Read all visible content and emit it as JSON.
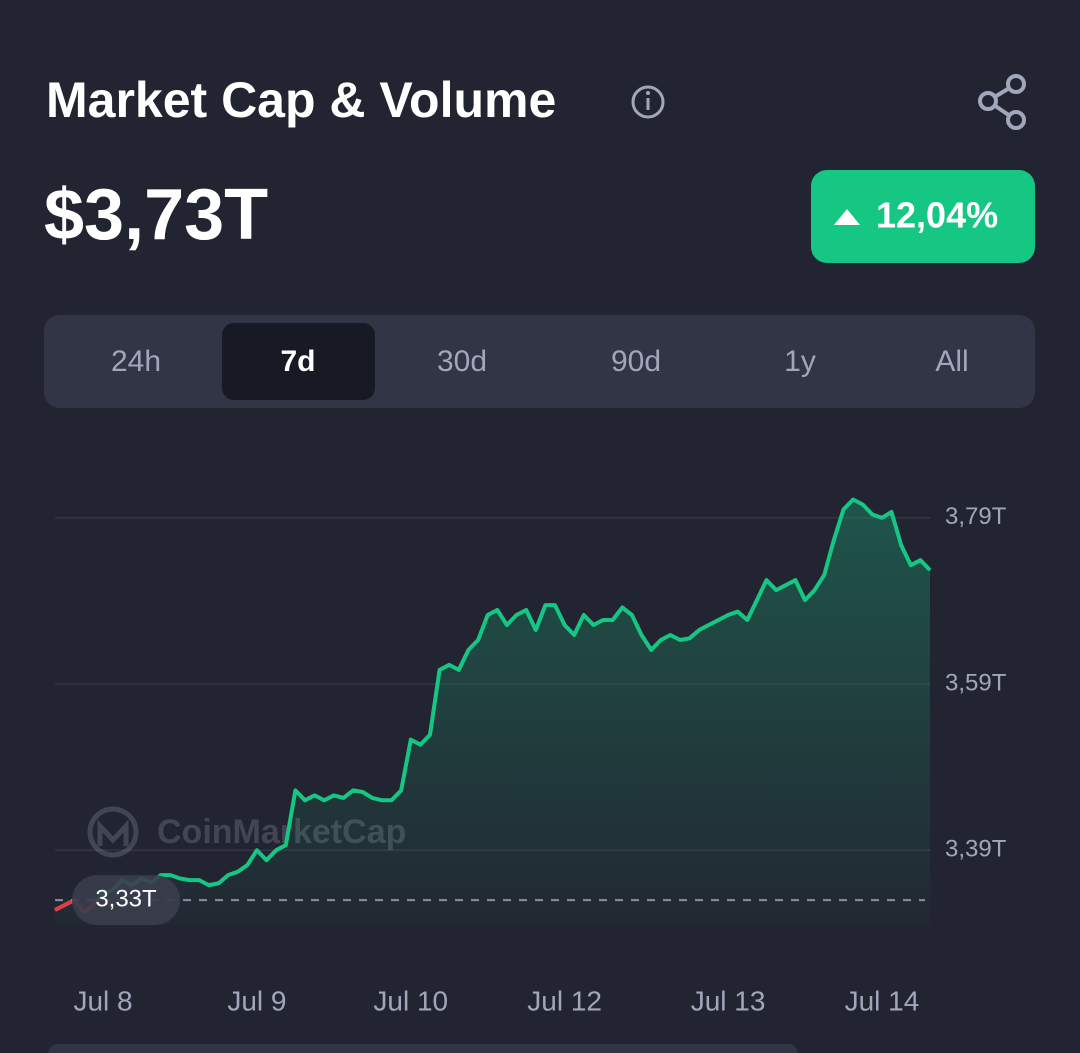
{
  "header": {
    "title": "Market Cap & Volume",
    "value": "$3,73T",
    "change": "12,04%"
  },
  "tabs": {
    "items": [
      "24h",
      "7d",
      "30d",
      "90d",
      "1y",
      "All"
    ],
    "selected": 1
  },
  "chart_data": {
    "type": "line",
    "watermark": "CoinMarketCap",
    "categories": [
      null,
      null,
      null,
      null,
      null,
      "Jul 8",
      null,
      null,
      null,
      null,
      null,
      null,
      null,
      null,
      null,
      null,
      null,
      null,
      null,
      null,
      null,
      "Jul 9",
      null,
      null,
      null,
      null,
      null,
      null,
      null,
      null,
      null,
      null,
      null,
      null,
      null,
      null,
      null,
      "Jul 10",
      null,
      null,
      null,
      null,
      null,
      null,
      null,
      null,
      null,
      null,
      null,
      null,
      null,
      null,
      null,
      "Jul 12",
      null,
      null,
      null,
      null,
      null,
      null,
      null,
      null,
      null,
      null,
      null,
      null,
      null,
      null,
      null,
      null,
      "Jul 13",
      null,
      null,
      null,
      null,
      null,
      null,
      null,
      null,
      null,
      null,
      null,
      null,
      null,
      null,
      null,
      "Jul 14",
      null,
      null,
      null,
      null,
      null
    ],
    "series": [
      {
        "color": "#16c784",
        "below_color": "#ea3943",
        "values": [
          3.318,
          3.324,
          3.33,
          3.315,
          3.324,
          3.338,
          3.342,
          3.354,
          3.348,
          3.356,
          3.351,
          3.36,
          3.36,
          3.356,
          3.354,
          3.354,
          3.348,
          3.35,
          3.36,
          3.364,
          3.372,
          3.39,
          3.378,
          3.39,
          3.396,
          3.462,
          3.45,
          3.456,
          3.45,
          3.456,
          3.453,
          3.462,
          3.46,
          3.453,
          3.45,
          3.45,
          3.462,
          3.523,
          3.517,
          3.529,
          3.607,
          3.613,
          3.607,
          3.631,
          3.643,
          3.673,
          3.679,
          3.661,
          3.673,
          3.679,
          3.655,
          3.685,
          3.685,
          3.661,
          3.649,
          3.673,
          3.661,
          3.667,
          3.667,
          3.682,
          3.673,
          3.649,
          3.631,
          3.643,
          3.649,
          3.643,
          3.645,
          3.655,
          3.661,
          3.667,
          3.673,
          3.677,
          3.667,
          3.691,
          3.715,
          3.703,
          3.709,
          3.715,
          3.691,
          3.703,
          3.721,
          3.763,
          3.8,
          3.812,
          3.806,
          3.794,
          3.79,
          3.797,
          3.757,
          3.733,
          3.739,
          3.727
        ]
      }
    ],
    "baseline": {
      "value": 3.33,
      "label": "3,33T"
    },
    "ylim": [
      3.3,
      3.88
    ],
    "yticks": [
      {
        "value": 3.39,
        "label": "3,39T"
      },
      {
        "value": 3.59,
        "label": "3,59T"
      },
      {
        "value": 3.79,
        "label": "3,79T"
      }
    ],
    "grid": true
  }
}
